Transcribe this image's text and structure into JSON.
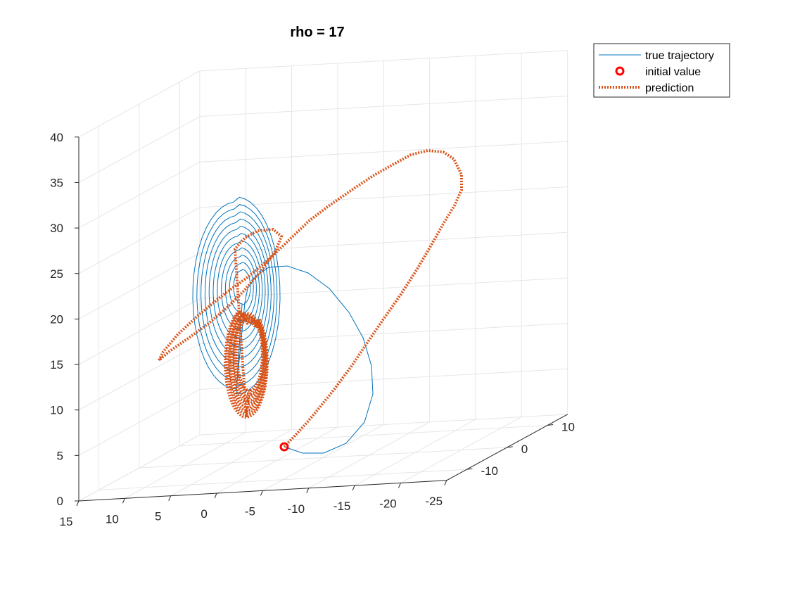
{
  "chart_data": {
    "type": "line3d",
    "title": "rho = 17",
    "grid": true,
    "legend_position": "top-right, outside axes",
    "axes": {
      "x": {
        "ticks": [
          15,
          10,
          5,
          0,
          -5,
          -10,
          -15,
          -20,
          -25
        ],
        "tick_labels": [
          "15",
          "10",
          "5",
          "0",
          "-5",
          "-10",
          "-15",
          "-20",
          "-25"
        ]
      },
      "y": {
        "ticks": [
          -10,
          0,
          10
        ],
        "tick_labels": [
          "-10",
          "0",
          "10"
        ]
      },
      "z": {
        "ticks": [
          0,
          5,
          10,
          15,
          20,
          25,
          30,
          35,
          40
        ],
        "tick_labels": [
          "0",
          "5",
          "10",
          "15",
          "20",
          "25",
          "30",
          "35",
          "40"
        ]
      }
    },
    "series": [
      {
        "name": "true trajectory",
        "style": "solid",
        "color": "#0072BD",
        "description_of_points": "3D trajectory starting at the initial value and spiralling into a fixed point around z≈25-30"
      },
      {
        "name": "initial value",
        "style": "circle-marker",
        "color": "#FF0000"
      },
      {
        "name": "prediction",
        "style": "dotted",
        "color": "#D95319"
      }
    ]
  }
}
